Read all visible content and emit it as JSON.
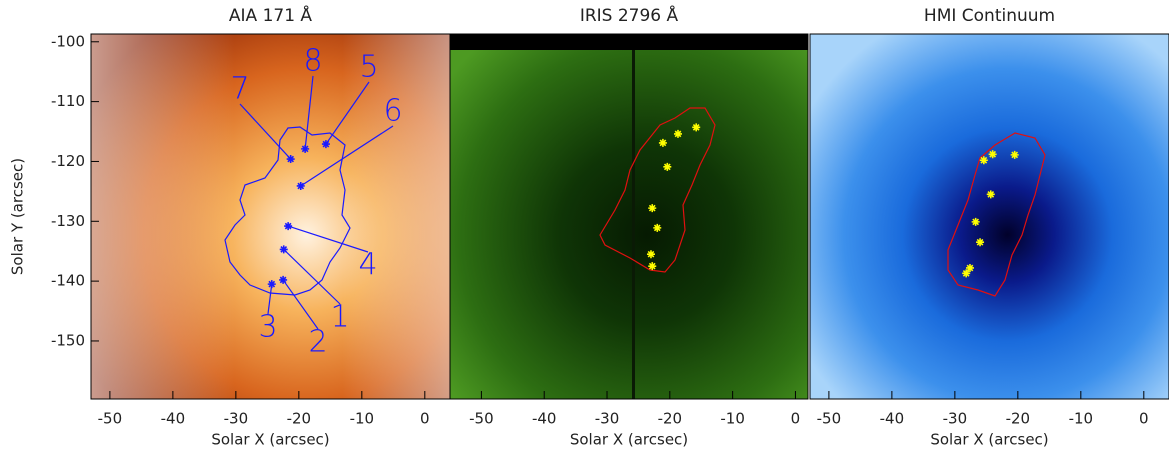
{
  "chart_data": [
    {
      "type": "image",
      "title": "AIA 171 Å",
      "xlabel": "Solar X (arcsec)",
      "ylabel": "Solar Y (arcsec)",
      "xlim": [
        -53,
        4
      ],
      "ylim": [
        -159.7,
        -98.7
      ],
      "xticks": [
        -50,
        -40,
        -30,
        -20,
        -10,
        0
      ],
      "yticks": [
        -150,
        -140,
        -130,
        -120,
        -110,
        -100
      ],
      "marker_color": "#1a1aff",
      "points": {
        "labels": [
          "7",
          "8",
          "5",
          "6",
          "4",
          "1",
          "2",
          "3"
        ],
        "x": [
          -21.3,
          -19.0,
          -15.7,
          -19.7,
          -21.7,
          -22.4,
          -22.5,
          -24.3
        ],
        "y": [
          -119.6,
          -117.9,
          -117.1,
          -124.1,
          -130.8,
          -134.7,
          -139.8,
          -140.5
        ]
      }
    },
    {
      "type": "image",
      "title": "IRIS 2796 Å",
      "xlabel": "Solar X (arcsec)",
      "xlim": [
        -55,
        2
      ],
      "ylim": [
        -159.7,
        -98.7
      ],
      "xticks": [
        -50,
        -40,
        -30,
        -20,
        -10,
        0
      ],
      "marker_color": "#ffff00",
      "points": {
        "x": [
          -21.1,
          -18.7,
          -15.8,
          -20.4,
          -22.8,
          -22.0,
          -23.0,
          -22.8
        ],
        "y": [
          -116.9,
          -115.4,
          -114.3,
          -120.9,
          -127.8,
          -131.1,
          -135.5,
          -137.5
        ]
      }
    },
    {
      "type": "image",
      "title": "HMI Continuum",
      "xlabel": "Solar X (arcsec)",
      "xlim": [
        -53,
        4
      ],
      "ylim": [
        -159.7,
        -98.7
      ],
      "xticks": [
        -50,
        -40,
        -30,
        -20,
        -10,
        0
      ],
      "marker_color": "#ffff00",
      "points": {
        "x": [
          -25.4,
          -24.0,
          -20.5,
          -24.3,
          -26.7,
          -26.0,
          -27.6,
          -28.2
        ],
        "y": [
          -119.8,
          -118.8,
          -118.9,
          -125.5,
          -130.1,
          -133.5,
          -137.8,
          -138.7
        ]
      }
    }
  ]
}
